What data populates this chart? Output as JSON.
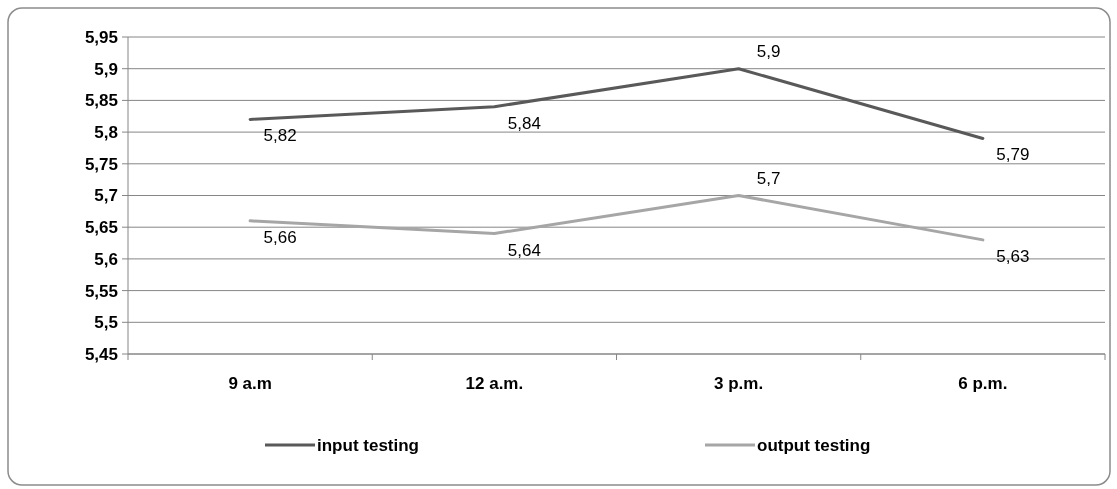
{
  "chart_data": {
    "type": "line",
    "categories": [
      "9 a.m",
      "12 a.m.",
      "3 p.m.",
      "6 p.m."
    ],
    "series": [
      {
        "name": "input testing",
        "color": "#595959",
        "values": [
          5.82,
          5.84,
          5.9,
          5.79
        ],
        "value_labels": [
          "5,82",
          "5,84",
          "5,9",
          "5,79"
        ]
      },
      {
        "name": "output testing",
        "color": "#a6a6a6",
        "values": [
          5.66,
          5.64,
          5.7,
          5.63
        ],
        "value_labels": [
          "5,66",
          "5,64",
          "5,7",
          "5,63"
        ]
      }
    ],
    "ylim": [
      5.45,
      5.95
    ],
    "yticks": [
      {
        "value": 5.45,
        "label": "5,45"
      },
      {
        "value": 5.5,
        "label": "5,5"
      },
      {
        "value": 5.55,
        "label": "5,55"
      },
      {
        "value": 5.6,
        "label": "5,6"
      },
      {
        "value": 5.65,
        "label": "5,65"
      },
      {
        "value": 5.7,
        "label": "5,7"
      },
      {
        "value": 5.75,
        "label": "5,75"
      },
      {
        "value": 5.8,
        "label": "5,8"
      },
      {
        "value": 5.85,
        "label": "5,85"
      },
      {
        "value": 5.9,
        "label": "5,9"
      },
      {
        "value": 5.95,
        "label": "5,95"
      }
    ],
    "grid": "y",
    "legend": "bottom",
    "marker": "none",
    "line_style": "solid"
  }
}
